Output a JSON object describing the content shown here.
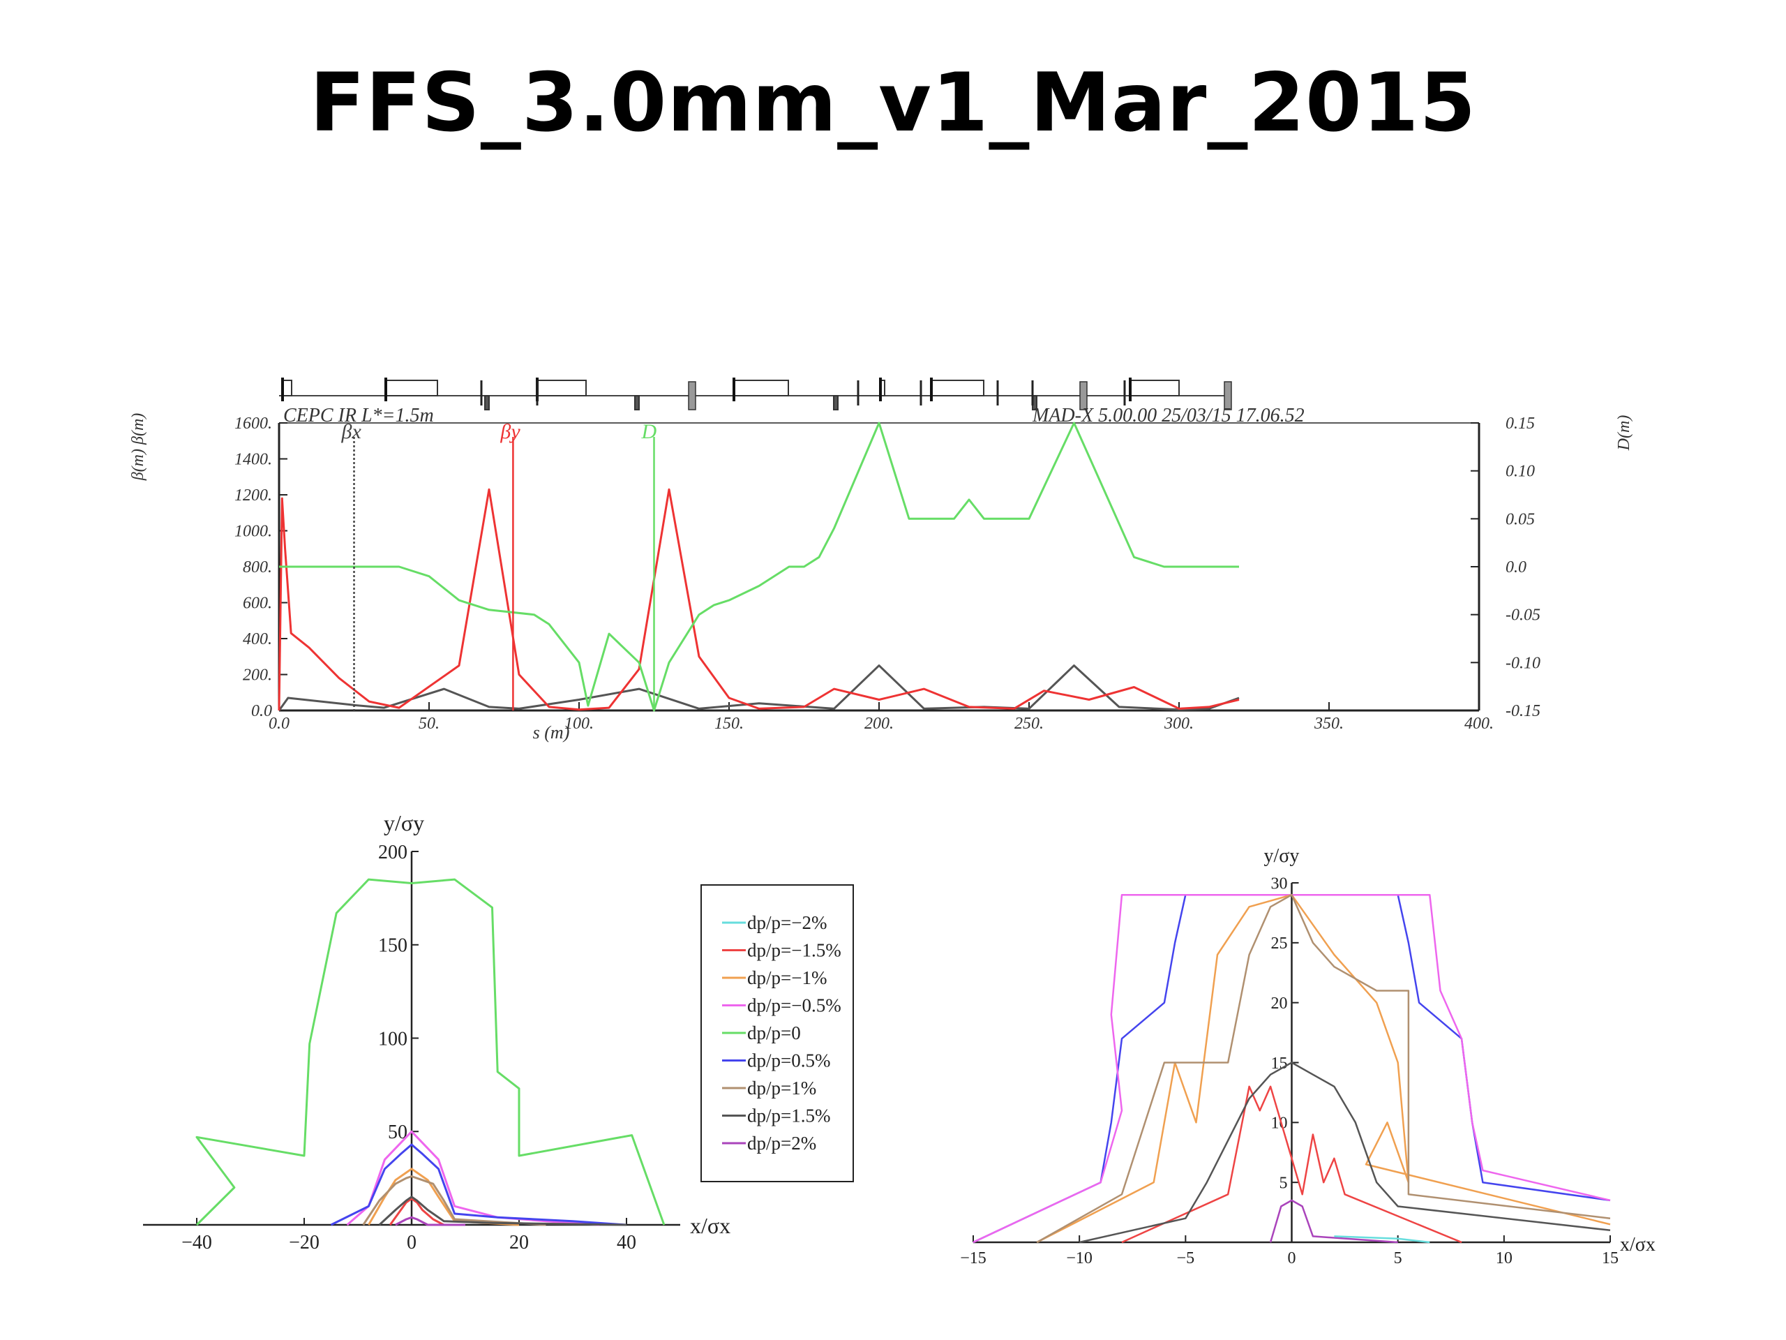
{
  "slide": {
    "title": "FFS_3.0mm_v1_Mar_2015"
  },
  "chart_data": [
    {
      "type": "line",
      "header_left": "CEPC IR L*=1.5m",
      "header_right": "MAD-X 5.00.00  25/03/15 17.06.52",
      "xlabel": "s (m)",
      "ylabel_left": "β(m) β(m)",
      "ylabel_right": "D(m)",
      "xlim": [
        0,
        400
      ],
      "ylim_left": [
        0,
        1600
      ],
      "ylim_right": [
        -0.15,
        0.15
      ],
      "x_ticks": [
        "0.0",
        "50.",
        "100.",
        "150.",
        "200.",
        "250.",
        "300.",
        "350.",
        "400."
      ],
      "y_ticks_left": [
        "0.0",
        "200.",
        "400.",
        "600.",
        "800.",
        "1000.",
        "1200.",
        "1400.",
        "1600."
      ],
      "y_ticks_right": [
        "-0.15",
        "-0.10",
        "-0.05",
        "0.0",
        "0.05",
        "0.10",
        "0.15"
      ],
      "series": [
        {
          "name": "βx",
          "color": "#555555",
          "axis": "left",
          "x": [
            0,
            3,
            25,
            35,
            55,
            70,
            80,
            100,
            120,
            140,
            160,
            185,
            200,
            215,
            235,
            250,
            265,
            280,
            300,
            310,
            320
          ],
          "y": [
            0,
            70,
            30,
            15,
            120,
            20,
            10,
            60,
            120,
            10,
            40,
            10,
            250,
            10,
            20,
            10,
            250,
            20,
            5,
            10,
            70
          ]
        },
        {
          "name": "βy",
          "color": "#ee3333",
          "axis": "left",
          "x": [
            0,
            1,
            2,
            4,
            10,
            20,
            30,
            40,
            60,
            70,
            80,
            90,
            100,
            110,
            120,
            130,
            140,
            150,
            160,
            175,
            185,
            200,
            215,
            230,
            245,
            255,
            270,
            285,
            300,
            310,
            320
          ],
          "y": [
            0,
            1180,
            900,
            430,
            350,
            180,
            50,
            15,
            250,
            1230,
            200,
            20,
            5,
            15,
            230,
            1230,
            300,
            70,
            10,
            20,
            120,
            60,
            120,
            20,
            10,
            110,
            60,
            130,
            10,
            20,
            60
          ]
        },
        {
          "name": "D",
          "color": "#66dd66",
          "axis": "right",
          "x": [
            0,
            5,
            40,
            50,
            60,
            70,
            85,
            90,
            100,
            103,
            110,
            120,
            125,
            130,
            140,
            145,
            150,
            160,
            170,
            175,
            180,
            185,
            200,
            210,
            215,
            225,
            230,
            235,
            240,
            245,
            250,
            265,
            275,
            285,
            295,
            305,
            320
          ],
          "y": [
            0.0,
            0.0,
            0.0,
            -0.01,
            -0.035,
            -0.045,
            -0.05,
            -0.06,
            -0.1,
            -0.145,
            -0.07,
            -0.1,
            -0.15,
            -0.1,
            -0.05,
            -0.04,
            -0.035,
            -0.02,
            0.0,
            0.0,
            0.01,
            0.04,
            0.15,
            0.05,
            0.05,
            0.05,
            0.07,
            0.05,
            0.05,
            0.05,
            0.05,
            0.15,
            0.08,
            0.01,
            0.0,
            0.0,
            0.0
          ]
        }
      ],
      "legend": [
        "βx",
        "βy",
        "D"
      ]
    },
    {
      "type": "line",
      "xlabel": "x/σx",
      "ylabel": "y/σy",
      "xlim": [
        -50,
        50
      ],
      "ylim": [
        0,
        200
      ],
      "x_ticks": [
        "-40",
        "-20",
        "0",
        "20",
        "40"
      ],
      "y_ticks": [
        "50",
        "100",
        "150",
        "200"
      ],
      "legend_position": "right",
      "legend": [
        "dp/p=-2%",
        "dp/p=-1.5%",
        "dp/p=-1%",
        "dp/p=-0.5%",
        "dp/p=0",
        "dp/p=0.5%",
        "dp/p=1%",
        "dp/p=1.5%",
        "dp/p=2%"
      ],
      "legend_colors": [
        "#66dddd",
        "#ee4444",
        "#f0a050",
        "#ee66ee",
        "#66dd66",
        "#4444ee",
        "#b09070",
        "#555555",
        "#aa44bb"
      ],
      "series": [
        {
          "name": "dp/p=0",
          "color": "#66dd66",
          "x": [
            -40,
            -33,
            -40,
            -20,
            -19,
            -14,
            -8,
            0,
            8,
            15,
            16,
            20,
            20,
            41,
            47
          ],
          "y": [
            0,
            20,
            47,
            37,
            97,
            167,
            185,
            183,
            185,
            170,
            82,
            73,
            37,
            48,
            0
          ]
        },
        {
          "name": "dp/p=-0.5%",
          "color": "#ee66ee",
          "x": [
            -12,
            -8,
            -5,
            -1,
            0,
            1,
            5,
            8,
            16,
            25,
            35
          ],
          "y": [
            0,
            10,
            35,
            47,
            50,
            47,
            35,
            10,
            4,
            2,
            0
          ]
        },
        {
          "name": "dp/p=0.5%",
          "color": "#4444ee",
          "x": [
            -15,
            -8,
            -5,
            -2,
            0,
            2,
            5,
            8,
            16,
            30,
            40
          ],
          "y": [
            0,
            10,
            30,
            38,
            43,
            38,
            30,
            6,
            4,
            2,
            0
          ]
        },
        {
          "name": "dp/p=-1%",
          "color": "#f0a050",
          "x": [
            -8,
            -5,
            -3,
            -1,
            0,
            1,
            3,
            5,
            8,
            20
          ],
          "y": [
            0,
            15,
            24,
            28,
            30,
            28,
            24,
            15,
            2,
            0
          ]
        },
        {
          "name": "dp/p=1%",
          "color": "#b09070",
          "x": [
            -9,
            -6,
            -3,
            -1,
            0,
            2,
            4,
            6,
            8,
            25
          ],
          "y": [
            0,
            13,
            22,
            25,
            26,
            24,
            22,
            13,
            3,
            0
          ]
        },
        {
          "name": "dp/p=-1.5%",
          "color": "#ee4444",
          "x": [
            -4,
            -2,
            -1,
            0,
            1,
            2,
            4,
            6
          ],
          "y": [
            0,
            8,
            12,
            14,
            12,
            8,
            3,
            0
          ]
        },
        {
          "name": "dp/p=1.5%",
          "color": "#555555",
          "x": [
            -6,
            -3,
            -1,
            0,
            1,
            3,
            6,
            15,
            40
          ],
          "y": [
            0,
            8,
            13,
            15,
            13,
            8,
            2,
            1,
            0
          ]
        },
        {
          "name": "dp/p=2%",
          "color": "#aa44bb",
          "x": [
            -3,
            -1,
            0,
            1,
            3,
            10
          ],
          "y": [
            0,
            3,
            4,
            3,
            0,
            0
          ]
        }
      ]
    },
    {
      "type": "line",
      "xlabel": "x/σx",
      "ylabel": "y/σy",
      "xlim": [
        -15,
        15
      ],
      "ylim": [
        0,
        30
      ],
      "x_ticks": [
        "-15",
        "-10",
        "-5",
        "0",
        "5",
        "10",
        "15"
      ],
      "y_ticks": [
        "5",
        "10",
        "15",
        "20",
        "25",
        "30"
      ],
      "series": [
        {
          "name": "dp/p=0.5%",
          "color": "#4444ee",
          "x": [
            -15,
            -9,
            -8.5,
            -8.0,
            -6.0,
            -5.5,
            -5.0,
            5.0,
            5.5,
            6.0,
            8.0,
            8.5,
            9.0,
            15.0
          ],
          "y": [
            0,
            5,
            10,
            17,
            20,
            25,
            29,
            29,
            25,
            20,
            17,
            10,
            5,
            3.5
          ]
        },
        {
          "name": "dp/p=-0.5%",
          "color": "#ee66ee",
          "x": [
            -15,
            -9,
            -8.0,
            -8.5,
            -8.0,
            6.5,
            7.0,
            8.0,
            8.5,
            9.0,
            15.0
          ],
          "y": [
            0,
            5,
            11,
            19,
            29,
            29,
            21,
            17,
            10,
            6,
            3.5
          ]
        },
        {
          "name": "dp/p=-1%",
          "color": "#f0a050",
          "x": [
            -12,
            -6.5,
            -5.5,
            -4.5,
            -3.5,
            -2,
            0,
            2,
            4,
            5,
            5.5,
            4.5,
            3.5,
            15
          ],
          "y": [
            0,
            5,
            15,
            10,
            24,
            28,
            29,
            24,
            20,
            15,
            5,
            10,
            6.5,
            1.5
          ]
        },
        {
          "name": "dp/p=1%",
          "color": "#b09070",
          "x": [
            -12,
            -8,
            -6,
            -3,
            -2,
            -1,
            0,
            1,
            2,
            4,
            5.5,
            5.5,
            15
          ],
          "y": [
            0,
            4,
            15,
            15,
            24,
            28,
            29,
            25,
            23,
            21,
            21,
            4,
            2
          ]
        },
        {
          "name": "dp/p=-1.5%",
          "color": "#ee4444",
          "x": [
            -8,
            -3,
            -2,
            -1.5,
            -1,
            -0.5,
            0,
            0.5,
            1,
            1.5,
            2,
            2.5,
            8
          ],
          "y": [
            0,
            4,
            13,
            11,
            13,
            10,
            7,
            4,
            9,
            5,
            7,
            4,
            0
          ]
        },
        {
          "name": "dp/p=1.5%",
          "color": "#555555",
          "x": [
            -10,
            -5,
            -4,
            -2,
            -1,
            0,
            1,
            2,
            3,
            4,
            5,
            15
          ],
          "y": [
            0,
            2,
            5,
            12,
            14,
            15,
            14,
            13,
            10,
            5,
            3,
            1
          ]
        },
        {
          "name": "dp/p=2%",
          "color": "#aa44bb",
          "x": [
            -1,
            -0.5,
            0,
            0.5,
            1,
            5
          ],
          "y": [
            0,
            3,
            3.5,
            3,
            0.5,
            0
          ]
        },
        {
          "name": "dp/p=-2%",
          "color": "#66dddd",
          "x": [
            2,
            5,
            6.5
          ],
          "y": [
            0.5,
            0.3,
            0
          ]
        }
      ]
    }
  ]
}
